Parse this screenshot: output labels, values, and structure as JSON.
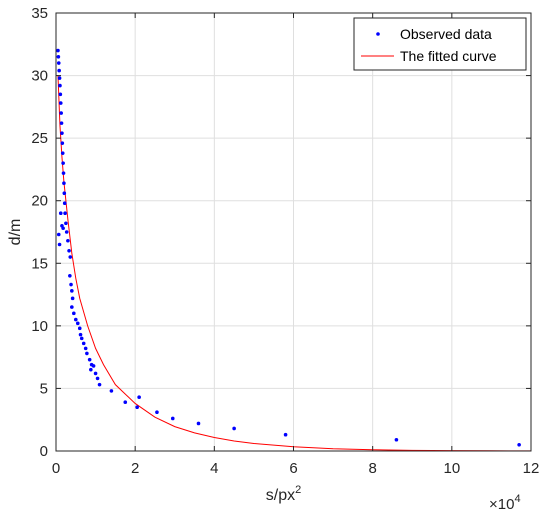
{
  "chart_data": {
    "type": "scatter",
    "title": "",
    "xlabel": "s/px",
    "xlabel_superscript": "2",
    "ylabel": "d/m",
    "x_multiplier_label": "×10",
    "x_multiplier_exponent": "4",
    "xlim": [
      0,
      12
    ],
    "ylim": [
      0,
      35
    ],
    "xticks": [
      "0",
      "2",
      "4",
      "6",
      "8",
      "10",
      "12"
    ],
    "yticks": [
      "0",
      "5",
      "10",
      "15",
      "20",
      "25",
      "30",
      "35"
    ],
    "grid": true,
    "legend_position": "top-right",
    "series": [
      {
        "name": "Observed data",
        "kind": "scatter",
        "color": "#0000ff",
        "points": [
          [
            0.05,
            32.0
          ],
          [
            0.06,
            31.5
          ],
          [
            0.07,
            31.0
          ],
          [
            0.08,
            30.4
          ],
          [
            0.09,
            29.8
          ],
          [
            0.1,
            29.2
          ],
          [
            0.11,
            28.5
          ],
          [
            0.12,
            27.8
          ],
          [
            0.13,
            27.0
          ],
          [
            0.14,
            26.2
          ],
          [
            0.15,
            25.4
          ],
          [
            0.16,
            24.6
          ],
          [
            0.17,
            23.8
          ],
          [
            0.18,
            23.0
          ],
          [
            0.19,
            22.2
          ],
          [
            0.2,
            21.4
          ],
          [
            0.21,
            20.6
          ],
          [
            0.22,
            19.8
          ],
          [
            0.23,
            19.0
          ],
          [
            0.25,
            18.2
          ],
          [
            0.27,
            17.5
          ],
          [
            0.3,
            16.8
          ],
          [
            0.07,
            17.3
          ],
          [
            0.09,
            16.5
          ],
          [
            0.12,
            19.0
          ],
          [
            0.15,
            18.0
          ],
          [
            0.18,
            17.8
          ],
          [
            0.33,
            16.0
          ],
          [
            0.36,
            15.5
          ],
          [
            0.35,
            14.0
          ],
          [
            0.38,
            13.3
          ],
          [
            0.4,
            12.8
          ],
          [
            0.42,
            12.2
          ],
          [
            0.4,
            11.5
          ],
          [
            0.45,
            11.0
          ],
          [
            0.5,
            10.5
          ],
          [
            0.55,
            10.2
          ],
          [
            0.6,
            9.8
          ],
          [
            0.62,
            9.3
          ],
          [
            0.65,
            9.0
          ],
          [
            0.7,
            8.6
          ],
          [
            0.75,
            8.2
          ],
          [
            0.78,
            7.8
          ],
          [
            0.85,
            7.3
          ],
          [
            0.9,
            6.9
          ],
          [
            0.88,
            6.5
          ],
          [
            0.95,
            6.8
          ],
          [
            1.0,
            6.2
          ],
          [
            1.05,
            5.8
          ],
          [
            1.1,
            5.3
          ],
          [
            1.4,
            4.8
          ],
          [
            1.75,
            3.9
          ],
          [
            2.05,
            3.5
          ],
          [
            2.1,
            4.3
          ],
          [
            2.55,
            3.1
          ],
          [
            2.95,
            2.6
          ],
          [
            3.6,
            2.2
          ],
          [
            4.5,
            1.8
          ],
          [
            5.8,
            1.3
          ],
          [
            8.6,
            0.9
          ],
          [
            11.7,
            0.5
          ]
        ]
      },
      {
        "name": "The fitted curve",
        "kind": "line",
        "color": "#ff0000",
        "points": [
          [
            0.05,
            30.0
          ],
          [
            0.1,
            26.0
          ],
          [
            0.15,
            23.5
          ],
          [
            0.2,
            21.5
          ],
          [
            0.3,
            18.5
          ],
          [
            0.4,
            15.8
          ],
          [
            0.5,
            13.8
          ],
          [
            0.6,
            12.2
          ],
          [
            0.8,
            10.0
          ],
          [
            1.0,
            8.2
          ],
          [
            1.2,
            6.9
          ],
          [
            1.5,
            5.3
          ],
          [
            2.0,
            3.8
          ],
          [
            2.5,
            2.7
          ],
          [
            3.0,
            1.95
          ],
          [
            3.5,
            1.45
          ],
          [
            4.0,
            1.08
          ],
          [
            4.5,
            0.8
          ],
          [
            5.0,
            0.6
          ],
          [
            6.0,
            0.34
          ],
          [
            7.0,
            0.18
          ],
          [
            8.0,
            0.1
          ],
          [
            9.0,
            0.05
          ],
          [
            10.0,
            0.03
          ],
          [
            11.0,
            0.015
          ],
          [
            12.0,
            0.01
          ]
        ]
      }
    ]
  }
}
